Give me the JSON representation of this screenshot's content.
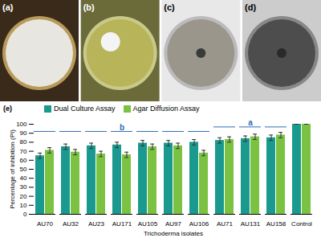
{
  "panels": [
    {
      "label": "(a)"
    },
    {
      "label": "(b)"
    },
    {
      "label": "(c)"
    },
    {
      "label": "(d)"
    }
  ],
  "chart_data": {
    "type": "bar",
    "title": "(e)",
    "x_label": "Trichoderma isolates",
    "y_label": "Percentage of inhibition (PI)",
    "categories": [
      "AU70",
      "AU32",
      "AU23",
      "AU171",
      "AU105",
      "AU97",
      "AU106",
      "AU71",
      "AU131",
      "AU158",
      "Control"
    ],
    "series": [
      {
        "name": "Dual Culture Assay",
        "color": "#1a9a8e",
        "values": [
          65,
          75,
          76,
          77,
          79,
          79,
          80,
          82,
          84,
          85,
          100
        ],
        "errors": [
          3,
          3,
          3,
          3,
          3,
          3,
          3,
          3,
          3,
          3,
          0
        ]
      },
      {
        "name": "Agar Diffusion Assay",
        "color": "#7cc242",
        "values": [
          71,
          69,
          67,
          66,
          75,
          76,
          68,
          83,
          86,
          88,
          100
        ],
        "errors": [
          3,
          3,
          3,
          3,
          3,
          3,
          3,
          3,
          3,
          3,
          0
        ]
      }
    ],
    "annotations": [
      {
        "text": "b",
        "from": "AU70",
        "to": "AU106",
        "y": 92
      },
      {
        "text": "a",
        "from": "AU71",
        "to": "AU158",
        "y": 97
      }
    ],
    "ylim": [
      0,
      100
    ],
    "yticks": [
      0,
      10,
      20,
      30,
      40,
      50,
      60,
      70,
      80,
      90,
      100
    ],
    "grid": false,
    "legend": "top"
  }
}
